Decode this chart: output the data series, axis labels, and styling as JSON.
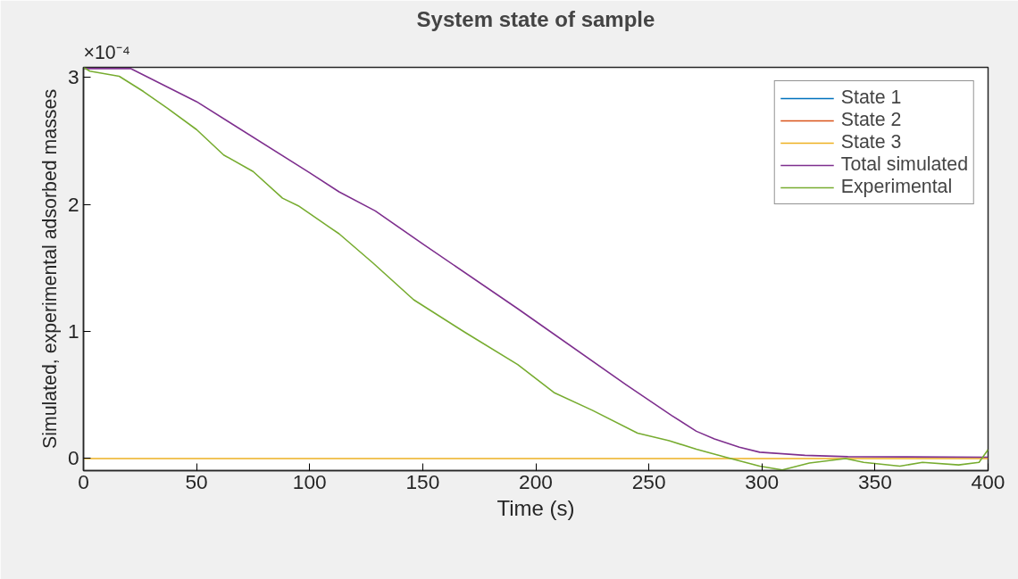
{
  "chart_data": {
    "type": "line",
    "title": "System state of sample",
    "xlabel": "Time (s)",
    "ylabel": "Simulated, experimental adsorbed masses",
    "annotations": [
      "×10⁻⁴"
    ],
    "xlim": [
      0,
      400
    ],
    "ylim": [
      -0.095,
      3.08
    ],
    "xticks": [
      0,
      50,
      100,
      150,
      200,
      250,
      300,
      350,
      400
    ],
    "yticks": [
      0,
      1,
      2,
      3
    ],
    "grid": false,
    "legend": "top right",
    "marker": "none",
    "line_style": "solid",
    "series": [
      {
        "name": "State 1",
        "color": "#0072bd",
        "values": [
          null,
          null
        ]
      },
      {
        "name": "State 2",
        "color": "#d95319",
        "values": [
          null,
          null
        ]
      },
      {
        "name": "State 3",
        "color": "#edb120",
        "x": [
          0,
          400
        ],
        "values": [
          0,
          0
        ]
      },
      {
        "name": "Total simulated",
        "color": "#7e2f8e",
        "x": [
          0,
          21,
          50,
          100,
          113,
          129,
          150,
          192,
          200,
          240,
          260,
          271,
          279,
          290,
          299,
          319,
          338,
          400
        ],
        "values": [
          3.07,
          3.07,
          2.81,
          2.25,
          2.1,
          1.95,
          1.69,
          1.18,
          1.08,
          0.58,
          0.34,
          0.215,
          0.155,
          0.09,
          0.05,
          0.025,
          0.015,
          0.01
        ]
      },
      {
        "name": "Experimental",
        "color": "#77ac30",
        "x": [
          0,
          2.8,
          15.8,
          26.5,
          37,
          50,
          62,
          75,
          88,
          95,
          108,
          113,
          128,
          146,
          169,
          192,
          208,
          225,
          245,
          259,
          271,
          284,
          299,
          309,
          321,
          337,
          345,
          361,
          371,
          387,
          396,
          400
        ],
        "values": [
          3.08,
          3.05,
          3.01,
          2.89,
          2.76,
          2.59,
          2.39,
          2.26,
          2.05,
          1.99,
          1.83,
          1.77,
          1.54,
          1.25,
          0.99,
          0.74,
          0.52,
          0.38,
          0.2,
          0.14,
          0.074,
          0.01,
          -0.06,
          -0.09,
          -0.035,
          0,
          -0.03,
          -0.06,
          -0.03,
          -0.05,
          -0.03,
          0.07
        ]
      }
    ]
  }
}
